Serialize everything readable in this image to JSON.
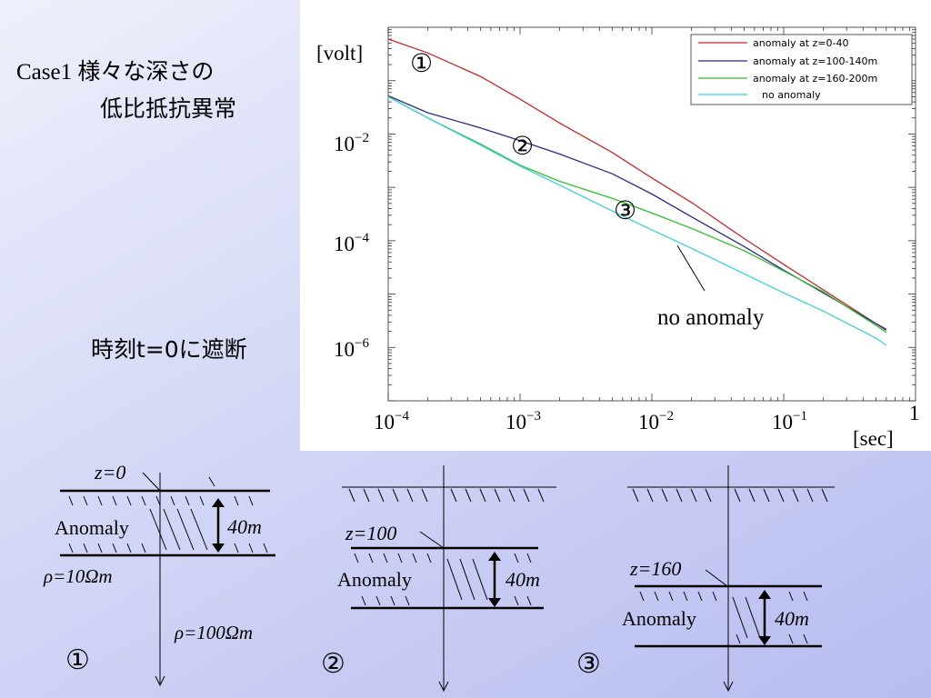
{
  "title": {
    "line1": "Case1  様々な深さの",
    "line2": "低比抵抗異常",
    "cutoff": "時刻t=0に遮断"
  },
  "chart_data": {
    "type": "line",
    "xscale": "log",
    "yscale": "log",
    "xlim": [
      0.0001,
      1
    ],
    "ylim": [
      1e-07,
      1
    ],
    "xlabel": "[sec]",
    "ylabel": "[volt]",
    "xticks": [
      {
        "base": "10",
        "exp": "−4"
      },
      {
        "base": "10",
        "exp": "−3"
      },
      {
        "base": "10",
        "exp": "−2"
      },
      {
        "base": "10",
        "exp": "−1"
      },
      {
        "base": "1",
        "exp": ""
      }
    ],
    "yticks": [
      {
        "base": "10",
        "exp": "−2"
      },
      {
        "base": "10",
        "exp": "−4"
      },
      {
        "base": "10",
        "exp": "−6"
      }
    ],
    "legend_position": "top-right",
    "grid": false,
    "series": [
      {
        "name": "anomaly at z=0-40",
        "color": "#c8282a",
        "x": [
          0.0001,
          0.0002,
          0.0005,
          0.001,
          0.002,
          0.005,
          0.01,
          0.02,
          0.05,
          0.1,
          0.2,
          0.5,
          0.6
        ],
        "y": [
          0.6,
          0.33,
          0.12,
          0.045,
          0.016,
          0.0045,
          0.0015,
          0.00052,
          0.00011,
          3.6e-05,
          1.2e-05,
          2.8e-06,
          2.2e-06
        ]
      },
      {
        "name": "anomaly at z=100-140m",
        "color": "#2a2a8c",
        "x": [
          0.0001,
          0.0002,
          0.0005,
          0.001,
          0.002,
          0.005,
          0.01,
          0.02,
          0.05,
          0.1,
          0.2,
          0.5,
          0.6
        ],
        "y": [
          0.052,
          0.025,
          0.013,
          0.0075,
          0.0042,
          0.0018,
          0.00075,
          0.00028,
          7.8e-05,
          2.8e-05,
          1.05e-05,
          2.8e-06,
          2.1e-06
        ]
      },
      {
        "name": "anomaly at z=160-200m",
        "color": "#2cbf2c",
        "x": [
          0.0001,
          0.0002,
          0.0005,
          0.001,
          0.002,
          0.005,
          0.01,
          0.02,
          0.05,
          0.1,
          0.2,
          0.5,
          0.6
        ],
        "y": [
          0.05,
          0.02,
          0.0065,
          0.0026,
          0.0013,
          0.00062,
          0.00033,
          0.00017,
          6.5e-05,
          2.7e-05,
          1.1e-05,
          2.6e-06,
          1.9e-06
        ]
      },
      {
        "name": "no anomaly",
        "color": "#3ad0d8",
        "x": [
          0.0001,
          0.0002,
          0.0005,
          0.001,
          0.002,
          0.005,
          0.01,
          0.02,
          0.05,
          0.1,
          0.2,
          0.5,
          0.6
        ],
        "y": [
          0.05,
          0.02,
          0.0062,
          0.0025,
          0.0011,
          0.00036,
          0.00016,
          7.2e-05,
          2.4e-05,
          1.05e-05,
          4.8e-06,
          1.5e-06,
          1.1e-06
        ]
      }
    ],
    "annotations": [
      {
        "text": "①",
        "near": "anomaly at z=0-40"
      },
      {
        "text": "②",
        "near": "anomaly at z=100-140m"
      },
      {
        "text": "③",
        "near": "anomaly at z=160-200m"
      },
      {
        "text": "no anomaly",
        "near": "no anomaly"
      }
    ]
  },
  "diagrams": [
    {
      "marker": "①",
      "depth_label": "z=0",
      "anomaly_label": "Anomaly",
      "thickness_label": "40m",
      "rho_anomaly": "ρ=10Ωm",
      "rho_host": "ρ=100Ωm"
    },
    {
      "marker": "②",
      "depth_label": "z=100",
      "anomaly_label": "Anomaly",
      "thickness_label": "40m"
    },
    {
      "marker": "③",
      "depth_label": "z=160",
      "anomaly_label": "Anomaly",
      "thickness_label": "40m"
    }
  ]
}
